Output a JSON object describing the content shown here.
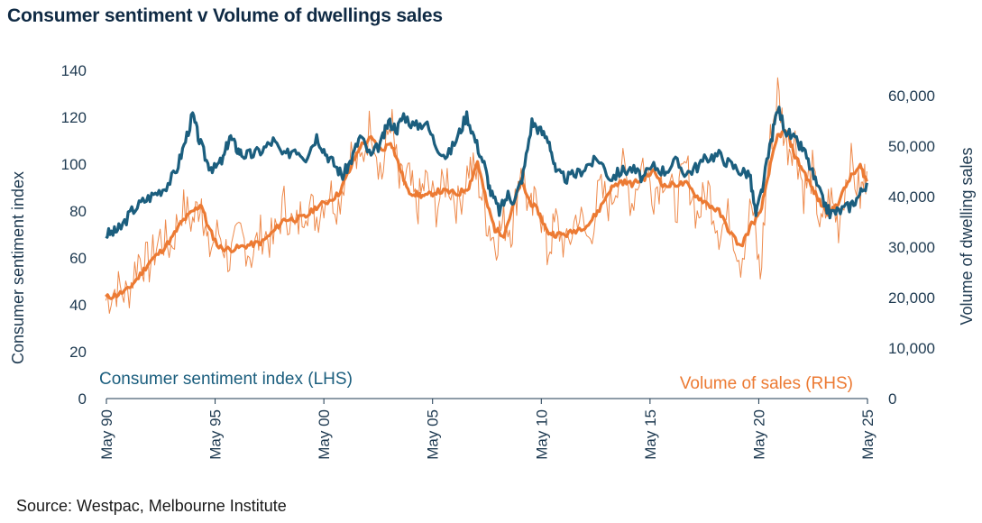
{
  "title": "Consumer sentiment v Volume of dwellings sales",
  "source": "Source: Westpac, Melbourne Institute",
  "colors": {
    "sentiment": "#1b5e7e",
    "sales_smooth": "#ec7a33",
    "sales_raw": "#ee8a4c",
    "text": "#1d3950"
  },
  "chart_data": {
    "type": "line",
    "title": "Consumer sentiment v Volume of dwellings sales",
    "ylabel": "Consumer sentiment index",
    "y2label": "Volume of dwelling sales",
    "ylim": [
      0,
      140
    ],
    "y2lim": [
      0,
      65000
    ],
    "y_ticks": [
      "0",
      "20",
      "40",
      "60",
      "80",
      "100",
      "120",
      "140"
    ],
    "y2_ticks": [
      "0",
      "10,000",
      "20,000",
      "30,000",
      "40,000",
      "50,000",
      "60,000"
    ],
    "x_ticks": [
      "May 90",
      "May 95",
      "May 00",
      "May 05",
      "May 10",
      "May 15",
      "May 20",
      "May 25"
    ],
    "x_tick_years": [
      1990.33,
      1995.33,
      2000.33,
      2005.33,
      2010.33,
      2015.33,
      2020.33,
      2025.33
    ],
    "xlim": [
      1990.33,
      2025.33
    ],
    "series": [
      {
        "name": "Consumer sentiment index (LHS)",
        "axis": "left",
        "x": [
          1990.3,
          1990.7,
          1991.0,
          1991.5,
          1992.0,
          1992.5,
          1993.0,
          1993.5,
          1993.9,
          1994.3,
          1994.6,
          1995.0,
          1995.3,
          1995.7,
          1996.0,
          1996.3,
          1996.6,
          1997.0,
          1997.5,
          1998.0,
          1998.5,
          1999.0,
          1999.5,
          2000.0,
          2000.4,
          2000.8,
          2001.2,
          2001.6,
          2002.0,
          2002.5,
          2003.0,
          2003.3,
          2003.7,
          2004.0,
          2004.5,
          2005.0,
          2005.5,
          2006.0,
          2006.5,
          2006.9,
          2007.3,
          2007.7,
          2008.0,
          2008.4,
          2008.8,
          2009.1,
          2009.5,
          2009.9,
          2010.3,
          2010.7,
          2011.0,
          2011.5,
          2012.0,
          2012.5,
          2013.0,
          2013.5,
          2014.0,
          2014.5,
          2015.0,
          2015.5,
          2016.0,
          2016.5,
          2017.0,
          2017.5,
          2018.0,
          2018.5,
          2019.0,
          2019.5,
          2019.9,
          2020.2,
          2020.5,
          2020.9,
          2021.2,
          2021.6,
          2022.0,
          2022.4,
          2022.8,
          2023.2,
          2023.6,
          2024.0,
          2024.5,
          2024.9,
          2025.3
        ],
        "values": [
          70,
          71,
          73,
          80,
          84,
          87,
          90,
          96,
          108,
          121,
          110,
          100,
          98,
          102,
          112,
          107,
          104,
          104,
          106,
          110,
          103,
          107,
          103,
          112,
          105,
          100,
          95,
          102,
          112,
          103,
          110,
          118,
          115,
          121,
          116,
          118,
          108,
          103,
          112,
          121,
          110,
          100,
          88,
          80,
          87,
          84,
          96,
          118,
          114,
          110,
          96,
          94,
          96,
          100,
          102,
          94,
          97,
          98,
          94,
          99,
          97,
          101,
          96,
          99,
          103,
          104,
          100,
          97,
          96,
          78,
          90,
          110,
          124,
          114,
          110,
          106,
          96,
          86,
          79,
          80,
          82,
          86,
          92
        ]
      },
      {
        "name": "Volume of sales (RHS)",
        "axis": "right",
        "x": [
          1990.3,
          1990.8,
          1991.3,
          1991.8,
          1992.3,
          1992.8,
          1993.3,
          1993.8,
          1994.3,
          1994.7,
          1995.0,
          1995.5,
          1996.0,
          1996.5,
          1997.0,
          1997.5,
          1998.0,
          1998.5,
          1999.0,
          1999.5,
          2000.0,
          2000.5,
          2001.0,
          2001.5,
          2002.0,
          2002.5,
          2003.0,
          2003.4,
          2003.8,
          2004.2,
          2004.6,
          2005.0,
          2005.5,
          2006.0,
          2006.5,
          2007.0,
          2007.4,
          2007.8,
          2008.2,
          2008.6,
          2009.0,
          2009.4,
          2009.8,
          2010.2,
          2010.6,
          2011.0,
          2011.5,
          2012.0,
          2012.5,
          2013.0,
          2013.5,
          2014.0,
          2014.5,
          2015.0,
          2015.5,
          2016.0,
          2016.5,
          2017.0,
          2017.5,
          2018.0,
          2018.5,
          2019.0,
          2019.5,
          2020.0,
          2020.4,
          2020.8,
          2021.2,
          2021.6,
          2022.0,
          2022.4,
          2022.8,
          2023.2,
          2023.6,
          2024.0,
          2024.5,
          2025.0,
          2025.3
        ],
        "values": [
          20000,
          20500,
          21500,
          24000,
          27000,
          29000,
          31500,
          35000,
          37000,
          38500,
          34000,
          30000,
          29500,
          30000,
          30500,
          31000,
          33000,
          35500,
          35500,
          36000,
          38000,
          39000,
          40500,
          45000,
          50000,
          51500,
          49000,
          51000,
          46000,
          41000,
          40500,
          40000,
          41000,
          41000,
          40500,
          42000,
          47000,
          39000,
          33500,
          32500,
          37500,
          43000,
          39000,
          37000,
          33000,
          32500,
          32500,
          33500,
          34500,
          37500,
          41500,
          43000,
          42500,
          43500,
          45000,
          42000,
          42500,
          42500,
          40000,
          38500,
          37000,
          33000,
          30000,
          34500,
          36500,
          45000,
          52000,
          53000,
          48000,
          45000,
          41500,
          38500,
          36500,
          39000,
          43500,
          46000,
          43000
        ],
        "raw_values": [
          19500,
          22000,
          20500,
          28000,
          26500,
          32000,
          30000,
          38000,
          35000,
          40000,
          29000,
          33000,
          27500,
          32500,
          28500,
          33000,
          31000,
          38500,
          33000,
          39000,
          36000,
          41500,
          38500,
          49000,
          46000,
          55000,
          44000,
          56000,
          42000,
          44000,
          37500,
          43000,
          38000,
          44000,
          38000,
          46000,
          44000,
          36000,
          31000,
          35000,
          34000,
          47000,
          36000,
          40000,
          28500,
          35000,
          29500,
          37000,
          31000,
          41000,
          38500,
          46500,
          39000,
          47000,
          41000,
          45000,
          38000,
          46000,
          36000,
          41500,
          33500,
          36000,
          27500,
          38500,
          24000,
          49000,
          61000,
          50000,
          51000,
          41000,
          45000,
          33000,
          40000,
          34500,
          47500,
          40000,
          45000
        ]
      }
    ],
    "legend_labels": [
      "Consumer sentiment index (LHS)",
      "Volume of sales (RHS)"
    ]
  }
}
